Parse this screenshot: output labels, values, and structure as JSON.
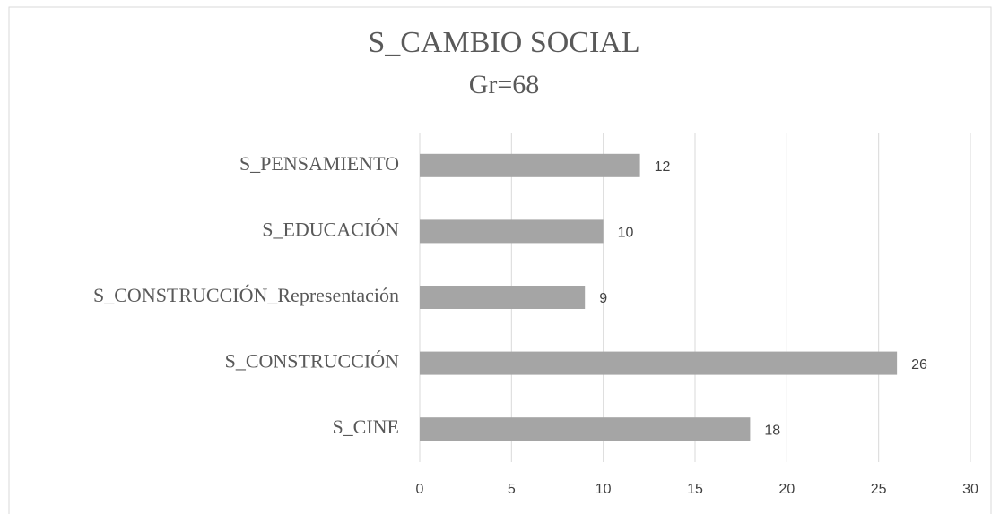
{
  "chart_data": {
    "type": "bar",
    "orientation": "horizontal",
    "title": "S_CAMBIO SOCIAL",
    "subtitle": "Gr=68",
    "categories": [
      "S_PENSAMIENTO",
      "S_EDUCACIÓN",
      "S_CONSTRUCCIÓN_Representación",
      "S_CONSTRUCCIÓN",
      "S_CINE"
    ],
    "values": [
      12,
      10,
      9,
      26,
      18
    ],
    "color": "#a5a5a5",
    "xlim": [
      0,
      30
    ],
    "xticks": [
      0,
      5,
      10,
      15,
      20,
      25,
      30
    ],
    "grid": true
  }
}
